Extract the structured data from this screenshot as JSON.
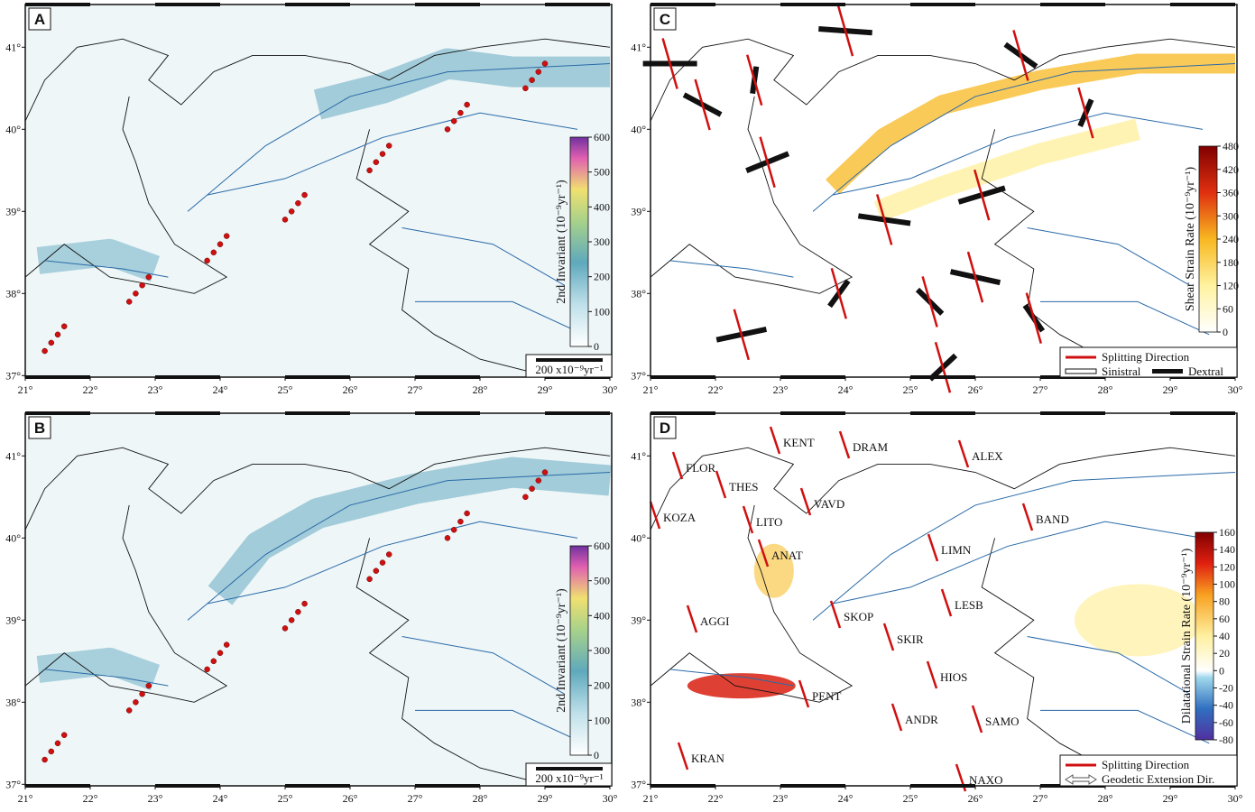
{
  "panels": [
    {
      "label": "A",
      "colorbar": {
        "title": "2nd Invariant (10⁻⁹yr⁻¹)",
        "lim": [
          0,
          600
        ],
        "ticks": [
          0,
          100,
          200,
          300,
          400,
          500,
          600
        ]
      },
      "scale_label": "200 x10⁻⁹yr⁻¹"
    },
    {
      "label": "B",
      "colorbar": {
        "title": "2nd Invariant (10⁻⁹yr⁻¹)",
        "lim": [
          0,
          600
        ],
        "ticks": [
          0,
          100,
          200,
          300,
          400,
          500,
          600
        ]
      },
      "scale_label": "200 x10⁻⁹yr⁻¹"
    },
    {
      "label": "C",
      "colorbar": {
        "title": "Shear Strain Rate (10⁻⁹yr⁻¹)",
        "lim": [
          0,
          480
        ],
        "ticks": [
          0,
          60,
          120,
          180,
          240,
          300,
          360,
          420,
          480
        ]
      },
      "legend": [
        "Splitting Direction",
        "Sinistral",
        "Dextral"
      ]
    },
    {
      "label": "D",
      "colorbar": {
        "title": "Dilatational Strain Rate (10⁻⁹yr⁻¹)",
        "lim": [
          -80,
          160
        ],
        "ticks": [
          -80,
          -60,
          -40,
          -20,
          0,
          20,
          40,
          60,
          80,
          100,
          120,
          140,
          160
        ]
      },
      "legend": [
        "Splitting Direction",
        "Geodetic Extension Dir."
      ],
      "stations": [
        "KENT",
        "DRAM",
        "ALEX",
        "FLOR",
        "THES",
        "VAVD",
        "KOZA",
        "LITO",
        "ANAT",
        "BAND",
        "LIMN",
        "AGGI",
        "SKOP",
        "LESB",
        "SKIR",
        "HIOS",
        "PENT",
        "ANDR",
        "SAMO",
        "KRAN",
        "NAXO"
      ]
    }
  ],
  "xticks": [
    {
      "value": 21,
      "label": "21°"
    },
    {
      "value": 22,
      "label": "22°"
    },
    {
      "value": 23,
      "label": "23°"
    },
    {
      "value": 24,
      "label": "24°"
    },
    {
      "value": 25,
      "label": "25°"
    },
    {
      "value": 26,
      "label": "26°"
    },
    {
      "value": 27,
      "label": "27°"
    },
    {
      "value": 28,
      "label": "28°"
    },
    {
      "value": 29,
      "label": "29°"
    },
    {
      "value": 30,
      "label": "30°"
    }
  ],
  "yticks": [
    {
      "value": 37,
      "label": "37°"
    },
    {
      "value": 38,
      "label": "38°"
    },
    {
      "value": 39,
      "label": "39°"
    },
    {
      "value": 40,
      "label": "40°"
    },
    {
      "value": 41,
      "label": "41°"
    }
  ]
}
